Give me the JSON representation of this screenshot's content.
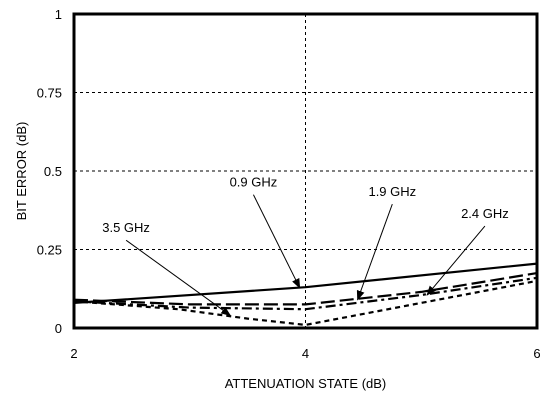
{
  "chart_data": {
    "type": "line",
    "xlabel": "ATTENUATION STATE (dB)",
    "ylabel": "BIT ERROR (dB)",
    "xlim": [
      2,
      6
    ],
    "ylim": [
      0,
      1
    ],
    "x_ticks": [
      "2",
      "4",
      "6"
    ],
    "y_ticks": [
      "0",
      "0.25",
      "0.5",
      "0.75",
      "1"
    ],
    "grid": "dashed",
    "series": [
      {
        "name": "0.9 GHz",
        "style": "solid",
        "x": [
          2,
          4,
          6
        ],
        "y": [
          0.08,
          0.13,
          0.205
        ]
      },
      {
        "name": "1.9 GHz",
        "style": "long-dash",
        "x": [
          2,
          3,
          4,
          5,
          6
        ],
        "y": [
          0.09,
          0.075,
          0.075,
          0.115,
          0.175
        ]
      },
      {
        "name": "2.4 GHz",
        "style": "dash-dot",
        "x": [
          2,
          3,
          4,
          5,
          6
        ],
        "y": [
          0.085,
          0.065,
          0.06,
          0.105,
          0.16
        ]
      },
      {
        "name": "3.5 GHz",
        "style": "short-dash",
        "x": [
          2,
          2.9,
          3.5,
          4,
          5,
          6
        ],
        "y": [
          0.085,
          0.06,
          0.03,
          0.01,
          0.08,
          0.15
        ]
      }
    ],
    "annotations": [
      {
        "text": "0.9 GHz",
        "x": 3.55,
        "y": 0.45,
        "target_x": 3.95,
        "target_y": 0.128
      },
      {
        "text": "1.9 GHz",
        "x": 4.75,
        "y": 0.42,
        "target_x": 4.45,
        "target_y": 0.09
      },
      {
        "text": "2.4 GHz",
        "x": 5.55,
        "y": 0.35,
        "target_x": 5.05,
        "target_y": 0.105
      },
      {
        "text": "3.5 GHz",
        "x": 2.45,
        "y": 0.305,
        "target_x": 3.35,
        "target_y": 0.04
      }
    ]
  }
}
